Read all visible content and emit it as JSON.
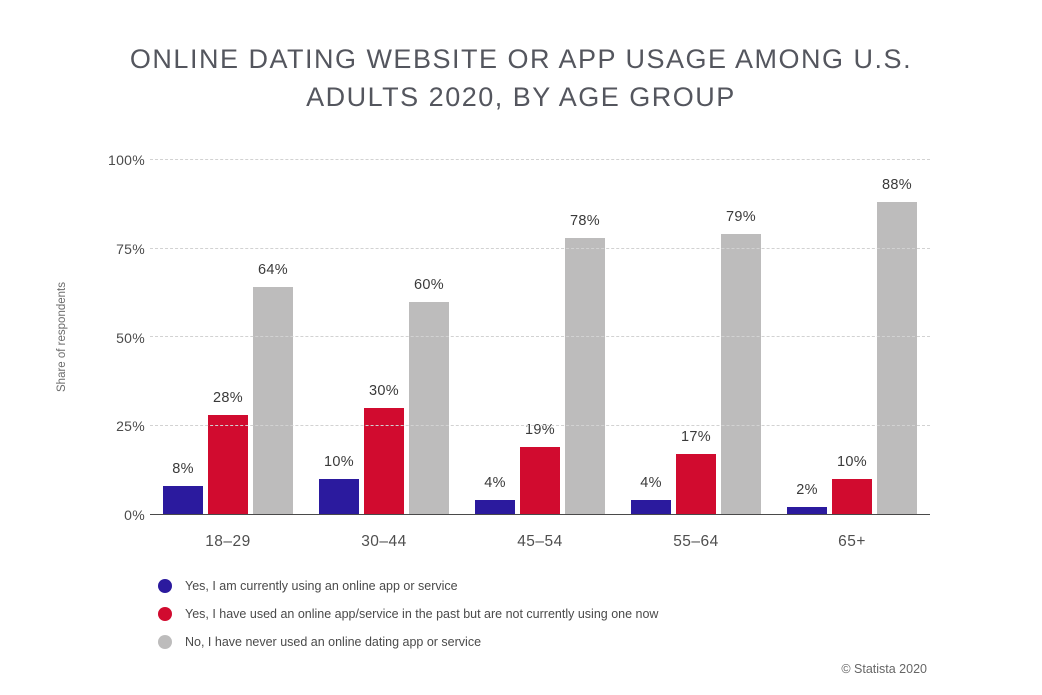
{
  "title": "ONLINE DATING WEBSITE OR APP USAGE AMONG U.S. ADULTS 2020, BY AGE GROUP",
  "footer": {
    "copyright": "© Statista 2020"
  },
  "chart_data": {
    "type": "bar",
    "title": "ONLINE DATING WEBSITE OR APP USAGE AMONG U.S. ADULTS 2020, BY AGE GROUP",
    "categories": [
      "18–29",
      "30–44",
      "45–54",
      "55–64",
      "65+"
    ],
    "series": [
      {
        "name": "Yes, I am currently using an online app or service",
        "color": "#2b1a9e",
        "values": [
          8,
          10,
          4,
          4,
          2
        ]
      },
      {
        "name": "Yes, I have used an online app/service in the past but are not currently using one now",
        "color": "#d10b2f",
        "values": [
          28,
          30,
          19,
          17,
          10
        ]
      },
      {
        "name": "No, I have never used an online dating app or service",
        "color": "#bdbcbc",
        "values": [
          64,
          60,
          78,
          79,
          88
        ]
      }
    ],
    "xlabel": "",
    "ylabel": "Share of respondents",
    "ylim": [
      0,
      100
    ],
    "yticks": [
      0,
      25,
      50,
      75,
      100
    ],
    "ytick_labels": [
      "0%",
      "25%",
      "50%",
      "75%",
      "100%"
    ],
    "value_label_suffix": "%",
    "grid": "horizontal-dashed",
    "legend_position": "bottom-left"
  }
}
